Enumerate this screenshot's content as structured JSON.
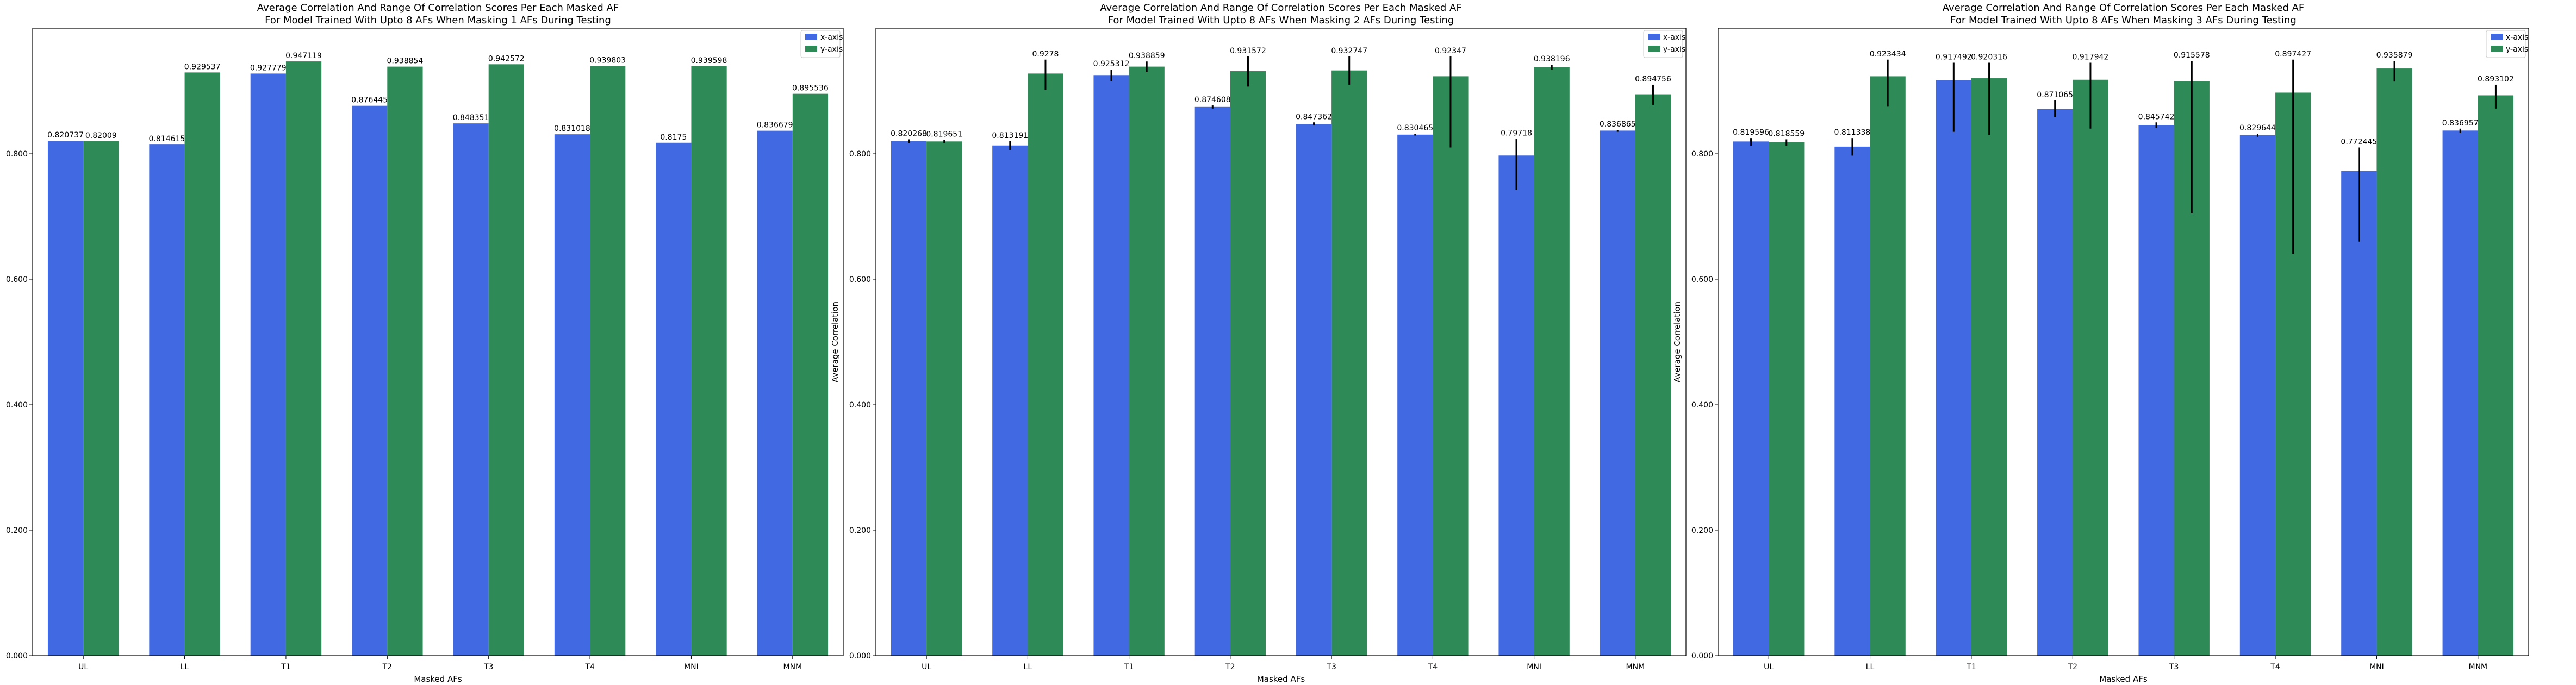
{
  "colors": {
    "x_axis": "#4169e1",
    "y_axis": "#2e8b57",
    "error_bar": "#000000"
  },
  "chart_data": [
    {
      "type": "bar",
      "title": "Average Correlation And Range Of Correlation Scores Per Each Masked AF",
      "subtitle": "For Model Trained With Upto 8 AFs When Masking 1 AFs During Testing",
      "xlabel": "Masked AFs",
      "ylabel": "Average Correlation",
      "ylim": [
        0,
        1.0
      ],
      "yticks": [
        "0.000",
        "0.200",
        "0.400",
        "0.600",
        "0.800"
      ],
      "categories": [
        "UL",
        "LL",
        "T1",
        "T2",
        "T3",
        "T4",
        "MNI",
        "MNM"
      ],
      "legend": {
        "position": "top-right",
        "entries": [
          "x-axis",
          "y-axis"
        ]
      },
      "series": [
        {
          "name": "x-axis",
          "values": [
            0.820737,
            0.814615,
            0.927779,
            0.876445,
            0.848351,
            0.831018,
            0.8175,
            0.836679
          ],
          "err_low": [
            0.820737,
            0.814615,
            0.927779,
            0.876445,
            0.848351,
            0.831018,
            0.8175,
            0.836679
          ],
          "err_high": [
            0.820737,
            0.814615,
            0.927779,
            0.876445,
            0.848351,
            0.831018,
            0.8175,
            0.836679
          ]
        },
        {
          "name": "y-axis",
          "values": [
            0.82009,
            0.929537,
            0.947119,
            0.938854,
            0.942572,
            0.939803,
            0.939598,
            0.895536
          ],
          "err_low": [
            0.82009,
            0.929537,
            0.947119,
            0.938854,
            0.942572,
            0.939803,
            0.939598,
            0.895536
          ],
          "err_high": [
            0.82009,
            0.929537,
            0.947119,
            0.938854,
            0.942572,
            0.939803,
            0.939598,
            0.895536
          ]
        }
      ],
      "labels": [
        [
          "0.820737",
          "0.814615",
          "0.927779",
          "0.876445",
          "0.848351",
          "0.831018",
          "0.8175",
          "0.836679"
        ],
        [
          "0.82009",
          "0.929537",
          "0.947119",
          "0.938854",
          "0.942572",
          "0.939803",
          "0.939598",
          "0.895536"
        ]
      ]
    },
    {
      "type": "bar",
      "title": "Average Correlation And Range Of Correlation Scores Per Each Masked AF",
      "subtitle": "For Model Trained With Upto 8 AFs When Masking 2 AFs During Testing",
      "xlabel": "Masked AFs",
      "ylabel": "Average Correlation",
      "ylim": [
        0,
        1.0
      ],
      "yticks": [
        "0.000",
        "0.200",
        "0.400",
        "0.600",
        "0.800"
      ],
      "categories": [
        "UL",
        "LL",
        "T1",
        "T2",
        "T3",
        "T4",
        "MNI",
        "MNM"
      ],
      "legend": {
        "position": "top-right",
        "entries": [
          "x-axis",
          "y-axis"
        ]
      },
      "series": [
        {
          "name": "x-axis",
          "values": [
            0.820268,
            0.813191,
            0.925312,
            0.874608,
            0.847362,
            0.830465,
            0.79718,
            0.836865
          ],
          "err_low": [
            0.817,
            0.806,
            0.916,
            0.872,
            0.845,
            0.829,
            0.742,
            0.835
          ],
          "err_high": [
            0.823,
            0.82,
            0.934,
            0.877,
            0.85,
            0.832,
            0.824,
            0.838
          ]
        },
        {
          "name": "y-axis",
          "values": [
            0.819651,
            0.9278,
            0.938859,
            0.931572,
            0.932747,
            0.92347,
            0.938196,
            0.894756
          ],
          "err_low": [
            0.817,
            0.902,
            0.93,
            0.907,
            0.91,
            0.81,
            0.934,
            0.878
          ],
          "err_high": [
            0.822,
            0.95,
            0.947,
            0.955,
            0.955,
            0.955,
            0.942,
            0.91
          ]
        }
      ],
      "labels": [
        [
          "0.820268",
          "0.813191",
          "0.925312",
          "0.874608",
          "0.847362",
          "0.830465",
          "0.79718",
          "0.836865"
        ],
        [
          "0.819651",
          "0.9278",
          "0.938859",
          "0.931572",
          "0.932747",
          "0.92347",
          "0.938196",
          "0.894756"
        ]
      ]
    },
    {
      "type": "bar",
      "title": "Average Correlation And Range Of Correlation Scores Per Each Masked AF",
      "subtitle": "For Model Trained With Upto 8 AFs When Masking 3 AFs During Testing",
      "xlabel": "Masked AFs",
      "ylabel": "Average Correlation",
      "ylim": [
        0,
        1.0
      ],
      "yticks": [
        "0.000",
        "0.200",
        "0.400",
        "0.600",
        "0.800"
      ],
      "categories": [
        "UL",
        "LL",
        "T1",
        "T2",
        "T3",
        "T4",
        "MNI",
        "MNM"
      ],
      "legend": {
        "position": "top-right",
        "entries": [
          "x-axis",
          "y-axis"
        ]
      },
      "series": [
        {
          "name": "x-axis",
          "values": [
            0.819596,
            0.811338,
            0.917492,
            0.871065,
            0.845742,
            0.829644,
            0.772445,
            0.836957
          ],
          "err_low": [
            0.813,
            0.797,
            0.835,
            0.858,
            0.841,
            0.827,
            0.66,
            0.833
          ],
          "err_high": [
            0.825,
            0.825,
            0.945,
            0.885,
            0.85,
            0.832,
            0.81,
            0.84
          ]
        },
        {
          "name": "y-axis",
          "values": [
            0.818559,
            0.923434,
            0.920316,
            0.917942,
            0.915578,
            0.897427,
            0.935879,
            0.893102
          ],
          "err_low": [
            0.813,
            0.875,
            0.83,
            0.84,
            0.705,
            0.64,
            0.915,
            0.872
          ],
          "err_high": [
            0.823,
            0.95,
            0.945,
            0.945,
            0.948,
            0.95,
            0.948,
            0.91
          ]
        }
      ],
      "labels": [
        [
          "0.819596",
          "0.811338",
          "0.917492",
          "0.871065",
          "0.845742",
          "0.829644",
          "0.772445",
          "0.836957"
        ],
        [
          "0.818559",
          "0.923434",
          "0.920316",
          "0.917942",
          "0.915578",
          "0.897427",
          "0.935879",
          "0.893102"
        ]
      ]
    }
  ]
}
